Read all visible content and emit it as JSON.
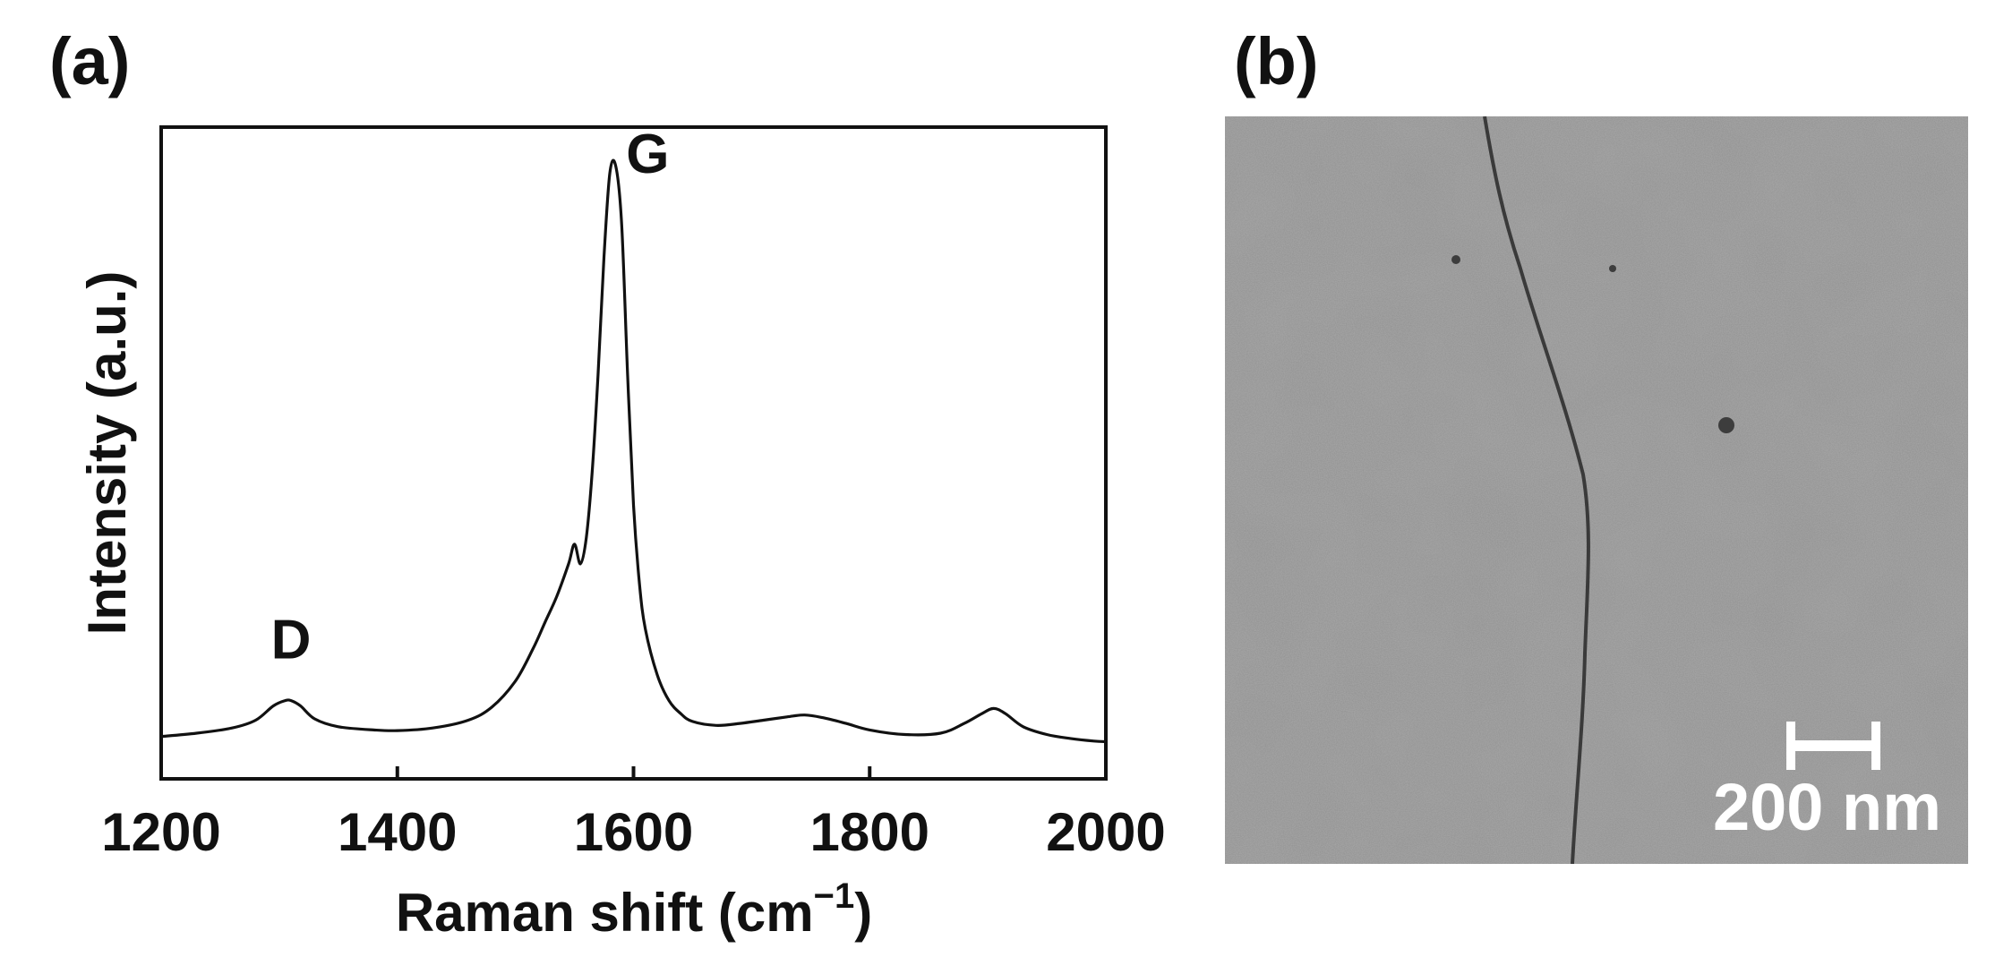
{
  "panels": {
    "a_label": "(a)",
    "b_label": "(b)"
  },
  "chart_data": {
    "type": "line",
    "xlabel": "Raman shift (cm",
    "xlabel_sup": "−1",
    "xlabel_close": ")",
    "ylabel": "Intensity (a.u.)",
    "xlim": [
      1200,
      2000
    ],
    "ylim": [
      0,
      1.0
    ],
    "xticks": [
      1200,
      1400,
      1600,
      1800,
      2000
    ],
    "grid": false,
    "y_tick_labels_shown": false,
    "annotations": [
      {
        "text": "D",
        "x": 1310,
        "y": 0.185
      },
      {
        "text": "G",
        "x": 1612,
        "y": 0.93
      }
    ],
    "series": [
      {
        "color": "#111111",
        "x": [
          1200,
          1230,
          1260,
          1280,
          1295,
          1305,
          1310,
          1318,
          1330,
          1350,
          1380,
          1400,
          1430,
          1460,
          1480,
          1500,
          1515,
          1525,
          1535,
          1545,
          1550,
          1555,
          1560,
          1565,
          1570,
          1575,
          1580,
          1585,
          1590,
          1595,
          1600,
          1605,
          1610,
          1620,
          1630,
          1640,
          1650,
          1670,
          1690,
          1710,
          1730,
          1745,
          1760,
          1780,
          1800,
          1830,
          1860,
          1880,
          1895,
          1905,
          1915,
          1930,
          1950,
          1970,
          1990,
          2000
        ],
        "y": [
          0.065,
          0.07,
          0.078,
          0.09,
          0.112,
          0.12,
          0.12,
          0.112,
          0.092,
          0.08,
          0.075,
          0.074,
          0.078,
          0.09,
          0.11,
          0.15,
          0.2,
          0.24,
          0.28,
          0.33,
          0.36,
          0.33,
          0.37,
          0.47,
          0.62,
          0.8,
          0.93,
          0.94,
          0.85,
          0.62,
          0.42,
          0.3,
          0.23,
          0.16,
          0.12,
          0.1,
          0.088,
          0.082,
          0.085,
          0.09,
          0.095,
          0.098,
          0.094,
          0.085,
          0.075,
          0.068,
          0.07,
          0.085,
          0.1,
          0.108,
          0.1,
          0.08,
          0.068,
          0.062,
          0.058,
          0.057
        ]
      }
    ]
  },
  "micrograph": {
    "scale_bar_text": "200 nm"
  }
}
